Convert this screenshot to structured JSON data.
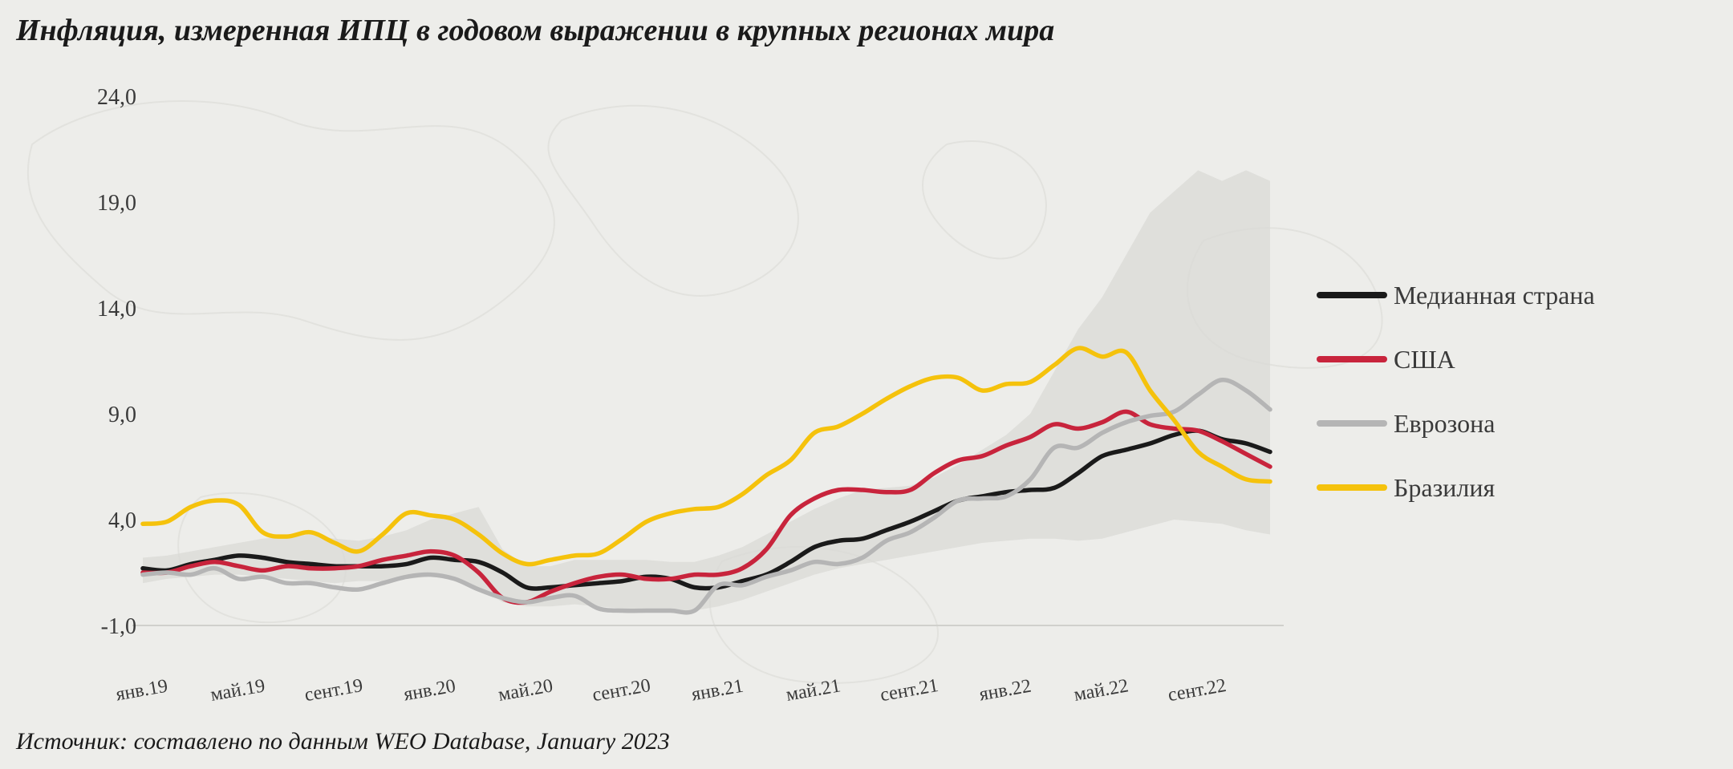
{
  "title": "Инфляция, измеренная ИПЦ в годовом выражении в крупных регионах мира",
  "source": "Источник: составлено по данным WEO Database, January 2023",
  "chart_data": {
    "type": "line",
    "ylim": [
      -1.0,
      24.0
    ],
    "yticks": [
      "24,0",
      "19,0",
      "14,0",
      "9,0",
      "4,0",
      "-1,0"
    ],
    "ytick_values": [
      24,
      19,
      14,
      9,
      4,
      -1
    ],
    "x_categories": [
      "янв.19",
      "фев.19",
      "мар.19",
      "апр.19",
      "май.19",
      "июн.19",
      "июл.19",
      "авг.19",
      "сент.19",
      "окт.19",
      "нояб.19",
      "дек.19",
      "янв.20",
      "фев.20",
      "мар.20",
      "апр.20",
      "май.20",
      "июн.20",
      "июл.20",
      "авг.20",
      "сент.20",
      "окт.20",
      "нояб.20",
      "дек.20",
      "янв.21",
      "фев.21",
      "мар.21",
      "апр.21",
      "май.21",
      "июн.21",
      "июл.21",
      "авг.21",
      "сент.21",
      "окт.21",
      "нояб.21",
      "дек.21",
      "янв.22",
      "фев.22",
      "мар.22",
      "апр.22",
      "май.22",
      "июн.22",
      "июл.22",
      "авг.22",
      "сент.22",
      "окт.22",
      "нояб.22",
      "дек.22"
    ],
    "xtick_labels": [
      {
        "index": 0,
        "label": "янв.19"
      },
      {
        "index": 4,
        "label": "май.19"
      },
      {
        "index": 8,
        "label": "сент.19"
      },
      {
        "index": 12,
        "label": "янв.20"
      },
      {
        "index": 16,
        "label": "май.20"
      },
      {
        "index": 20,
        "label": "сент.20"
      },
      {
        "index": 24,
        "label": "янв.21"
      },
      {
        "index": 28,
        "label": "май.21"
      },
      {
        "index": 32,
        "label": "сент.21"
      },
      {
        "index": 36,
        "label": "янв.22"
      },
      {
        "index": 40,
        "label": "май.22"
      },
      {
        "index": 44,
        "label": "сент.22"
      }
    ],
    "band": {
      "upper": [
        2.2,
        2.3,
        2.5,
        2.7,
        2.9,
        3.1,
        3.2,
        3.3,
        3.1,
        3.0,
        3.2,
        3.5,
        4.0,
        4.3,
        4.6,
        2.6,
        1.8,
        1.8,
        2.1,
        2.1,
        2.1,
        2.1,
        2.0,
        2.0,
        2.3,
        2.7,
        3.3,
        3.9,
        4.5,
        5.0,
        5.4,
        5.5,
        5.6,
        6.0,
        6.6,
        7.3,
        8.0,
        9.0,
        11.0,
        13.0,
        14.5,
        16.5,
        18.5,
        19.5,
        20.5,
        20.0,
        20.5,
        20.0
      ],
      "lower": [
        1.0,
        1.2,
        1.3,
        1.4,
        1.4,
        1.3,
        1.2,
        1.1,
        1.0,
        1.1,
        1.1,
        1.2,
        1.3,
        1.2,
        0.8,
        0.1,
        -0.1,
        -0.1,
        0.0,
        -0.1,
        -0.2,
        -0.3,
        -0.3,
        -0.3,
        -0.1,
        0.2,
        0.6,
        1.0,
        1.4,
        1.7,
        1.9,
        2.1,
        2.3,
        2.5,
        2.7,
        2.9,
        3.0,
        3.1,
        3.1,
        3.0,
        3.1,
        3.4,
        3.7,
        4.0,
        3.9,
        3.8,
        3.5,
        3.3
      ]
    },
    "series": [
      {
        "name": "Медианная страна",
        "color": "#1a1a1a",
        "values": [
          1.7,
          1.6,
          1.9,
          2.1,
          2.3,
          2.2,
          2.0,
          1.9,
          1.8,
          1.8,
          1.8,
          1.9,
          2.2,
          2.1,
          2.0,
          1.5,
          0.8,
          0.8,
          0.9,
          1.0,
          1.1,
          1.3,
          1.2,
          0.8,
          0.8,
          1.1,
          1.4,
          2.0,
          2.7,
          3.0,
          3.1,
          3.5,
          3.9,
          4.4,
          4.9,
          5.1,
          5.3,
          5.4,
          5.5,
          6.2,
          7.0,
          7.3,
          7.6,
          8.0,
          8.2,
          7.8,
          7.6,
          7.2
        ]
      },
      {
        "name": "США",
        "color": "#c8243c",
        "values": [
          1.5,
          1.5,
          1.8,
          2.0,
          1.8,
          1.6,
          1.8,
          1.7,
          1.7,
          1.8,
          2.1,
          2.3,
          2.5,
          2.3,
          1.5,
          0.3,
          0.1,
          0.6,
          1.0,
          1.3,
          1.4,
          1.2,
          1.2,
          1.4,
          1.4,
          1.7,
          2.6,
          4.2,
          5.0,
          5.4,
          5.4,
          5.3,
          5.4,
          6.2,
          6.8,
          7.0,
          7.5,
          7.9,
          8.5,
          8.3,
          8.6,
          9.1,
          8.5,
          8.3,
          8.2,
          7.7,
          7.1,
          6.5
        ]
      },
      {
        "name": "Еврозона",
        "color": "#b5b5b5",
        "values": [
          1.4,
          1.5,
          1.4,
          1.7,
          1.2,
          1.3,
          1.0,
          1.0,
          0.8,
          0.7,
          1.0,
          1.3,
          1.4,
          1.2,
          0.7,
          0.3,
          0.1,
          0.3,
          0.4,
          -0.2,
          -0.3,
          -0.3,
          -0.3,
          -0.3,
          0.9,
          0.9,
          1.3,
          1.6,
          2.0,
          1.9,
          2.2,
          3.0,
          3.4,
          4.1,
          4.9,
          5.0,
          5.1,
          5.9,
          7.4,
          7.4,
          8.1,
          8.6,
          8.9,
          9.1,
          9.9,
          10.6,
          10.1,
          9.2
        ]
      },
      {
        "name": "Бразилия",
        "color": "#f5c20c",
        "values": [
          3.8,
          3.9,
          4.6,
          4.9,
          4.7,
          3.4,
          3.2,
          3.4,
          2.9,
          2.5,
          3.3,
          4.3,
          4.2,
          4.0,
          3.3,
          2.4,
          1.9,
          2.1,
          2.3,
          2.4,
          3.1,
          3.9,
          4.3,
          4.5,
          4.6,
          5.2,
          6.1,
          6.8,
          8.1,
          8.4,
          9.0,
          9.7,
          10.3,
          10.7,
          10.7,
          10.1,
          10.4,
          10.5,
          11.3,
          12.1,
          11.7,
          11.9,
          10.1,
          8.7,
          7.2,
          6.5,
          5.9,
          5.8
        ]
      }
    ],
    "legend_position": "right"
  }
}
